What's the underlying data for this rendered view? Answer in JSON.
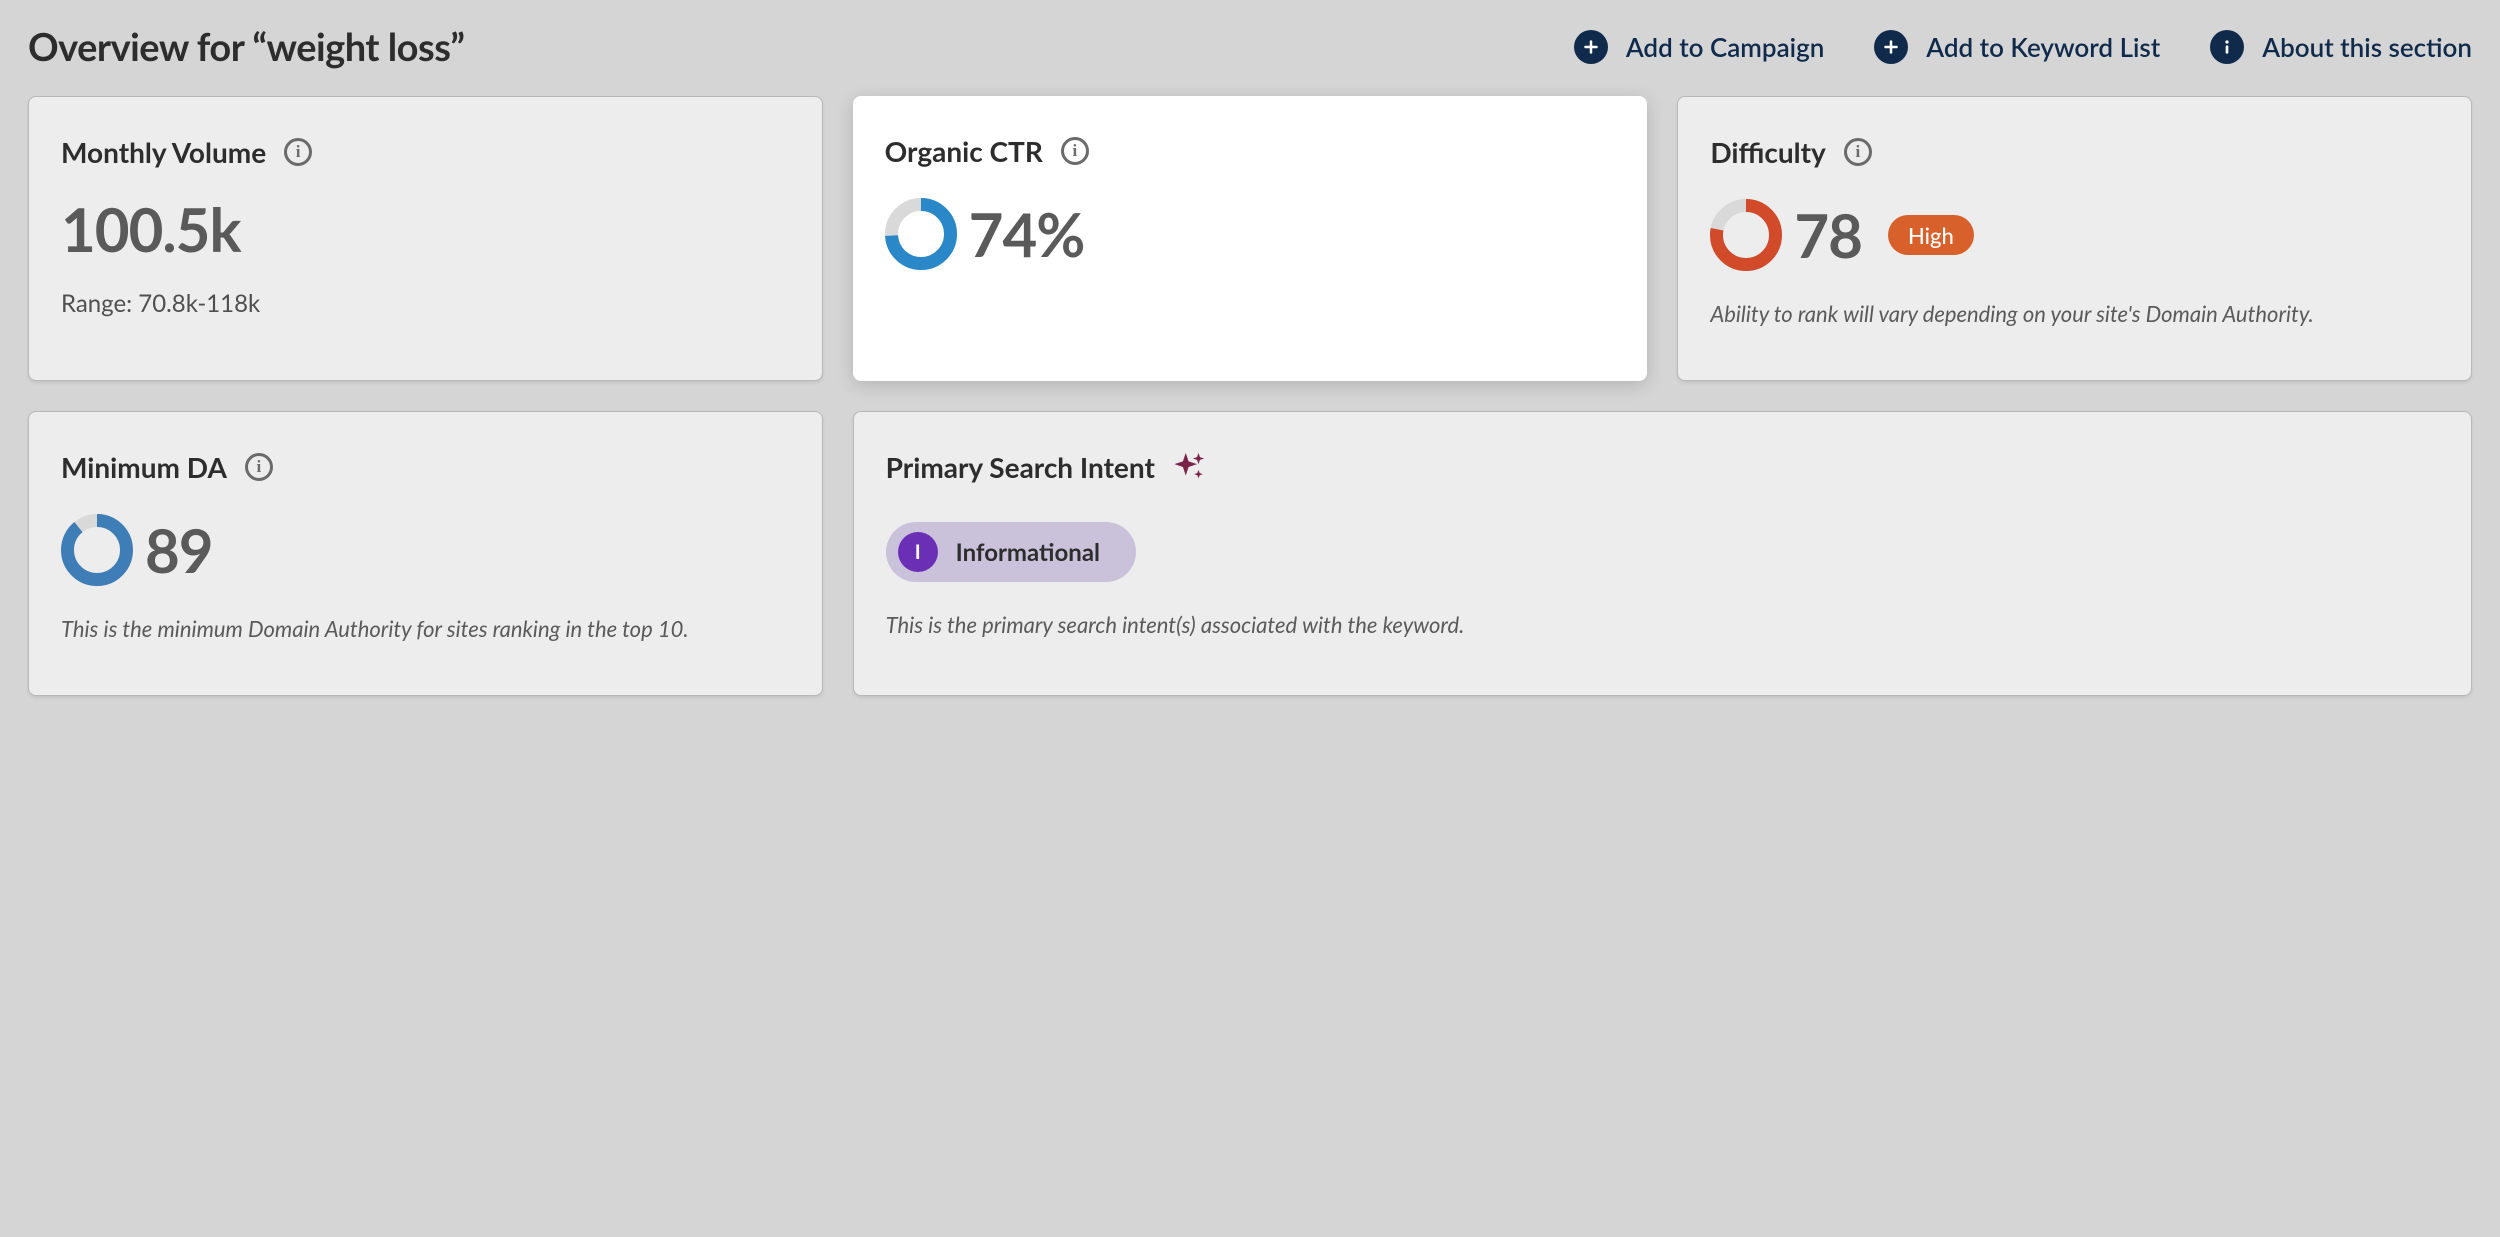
{
  "header": {
    "title": "Overview for “weight loss”",
    "actions": {
      "campaign": "Add to Campaign",
      "keyword_list": "Add to Keyword List",
      "about": "About this section"
    },
    "action_color": "#102a4c"
  },
  "cards": {
    "volume": {
      "title": "Monthly Volume",
      "value": "100.5k",
      "range_label": "Range: 70.8k-118k"
    },
    "ctr": {
      "title": "Organic CTR",
      "value": "74%",
      "donut": {
        "percent": 74,
        "fill_color": "#2b88c8",
        "track_color": "#d9d9d9",
        "thickness": 13
      }
    },
    "difficulty": {
      "title": "Difficulty",
      "value": "78",
      "badge_label": "High",
      "badge_bg": "#d8602a",
      "badge_text": "#ffffff",
      "note": "Ability to rank will vary depending on your site's Domain Authority.",
      "donut": {
        "percent": 78,
        "fill_color": "#d14a2a",
        "track_color": "#d9d9d9",
        "thickness": 13
      }
    },
    "min_da": {
      "title": "Minimum DA",
      "value": "89",
      "note": "This is the minimum Domain Authority for sites ranking in the top 10.",
      "donut": {
        "percent": 89,
        "fill_color": "#3e7db5",
        "track_color": "#d9d9d9",
        "thickness": 13
      }
    },
    "intent": {
      "title": "Primary Search Intent",
      "badge_letter": "I",
      "badge_bg": "#6a2fb5",
      "label": "Informational",
      "pill_bg": "#c9c2da",
      "note": "This is the primary search intent(s) associated with the keyword.",
      "sparkle_color": "#7a2248"
    }
  },
  "styling": {
    "page_bg": "#d5d5d5",
    "card_bg": "#ededed",
    "card_highlight_bg": "#ffffff",
    "card_border": "#b8b8b8",
    "title_color": "#2d2d2d",
    "value_color": "#5a5a5a",
    "info_icon_color": "#6b6b6b"
  }
}
